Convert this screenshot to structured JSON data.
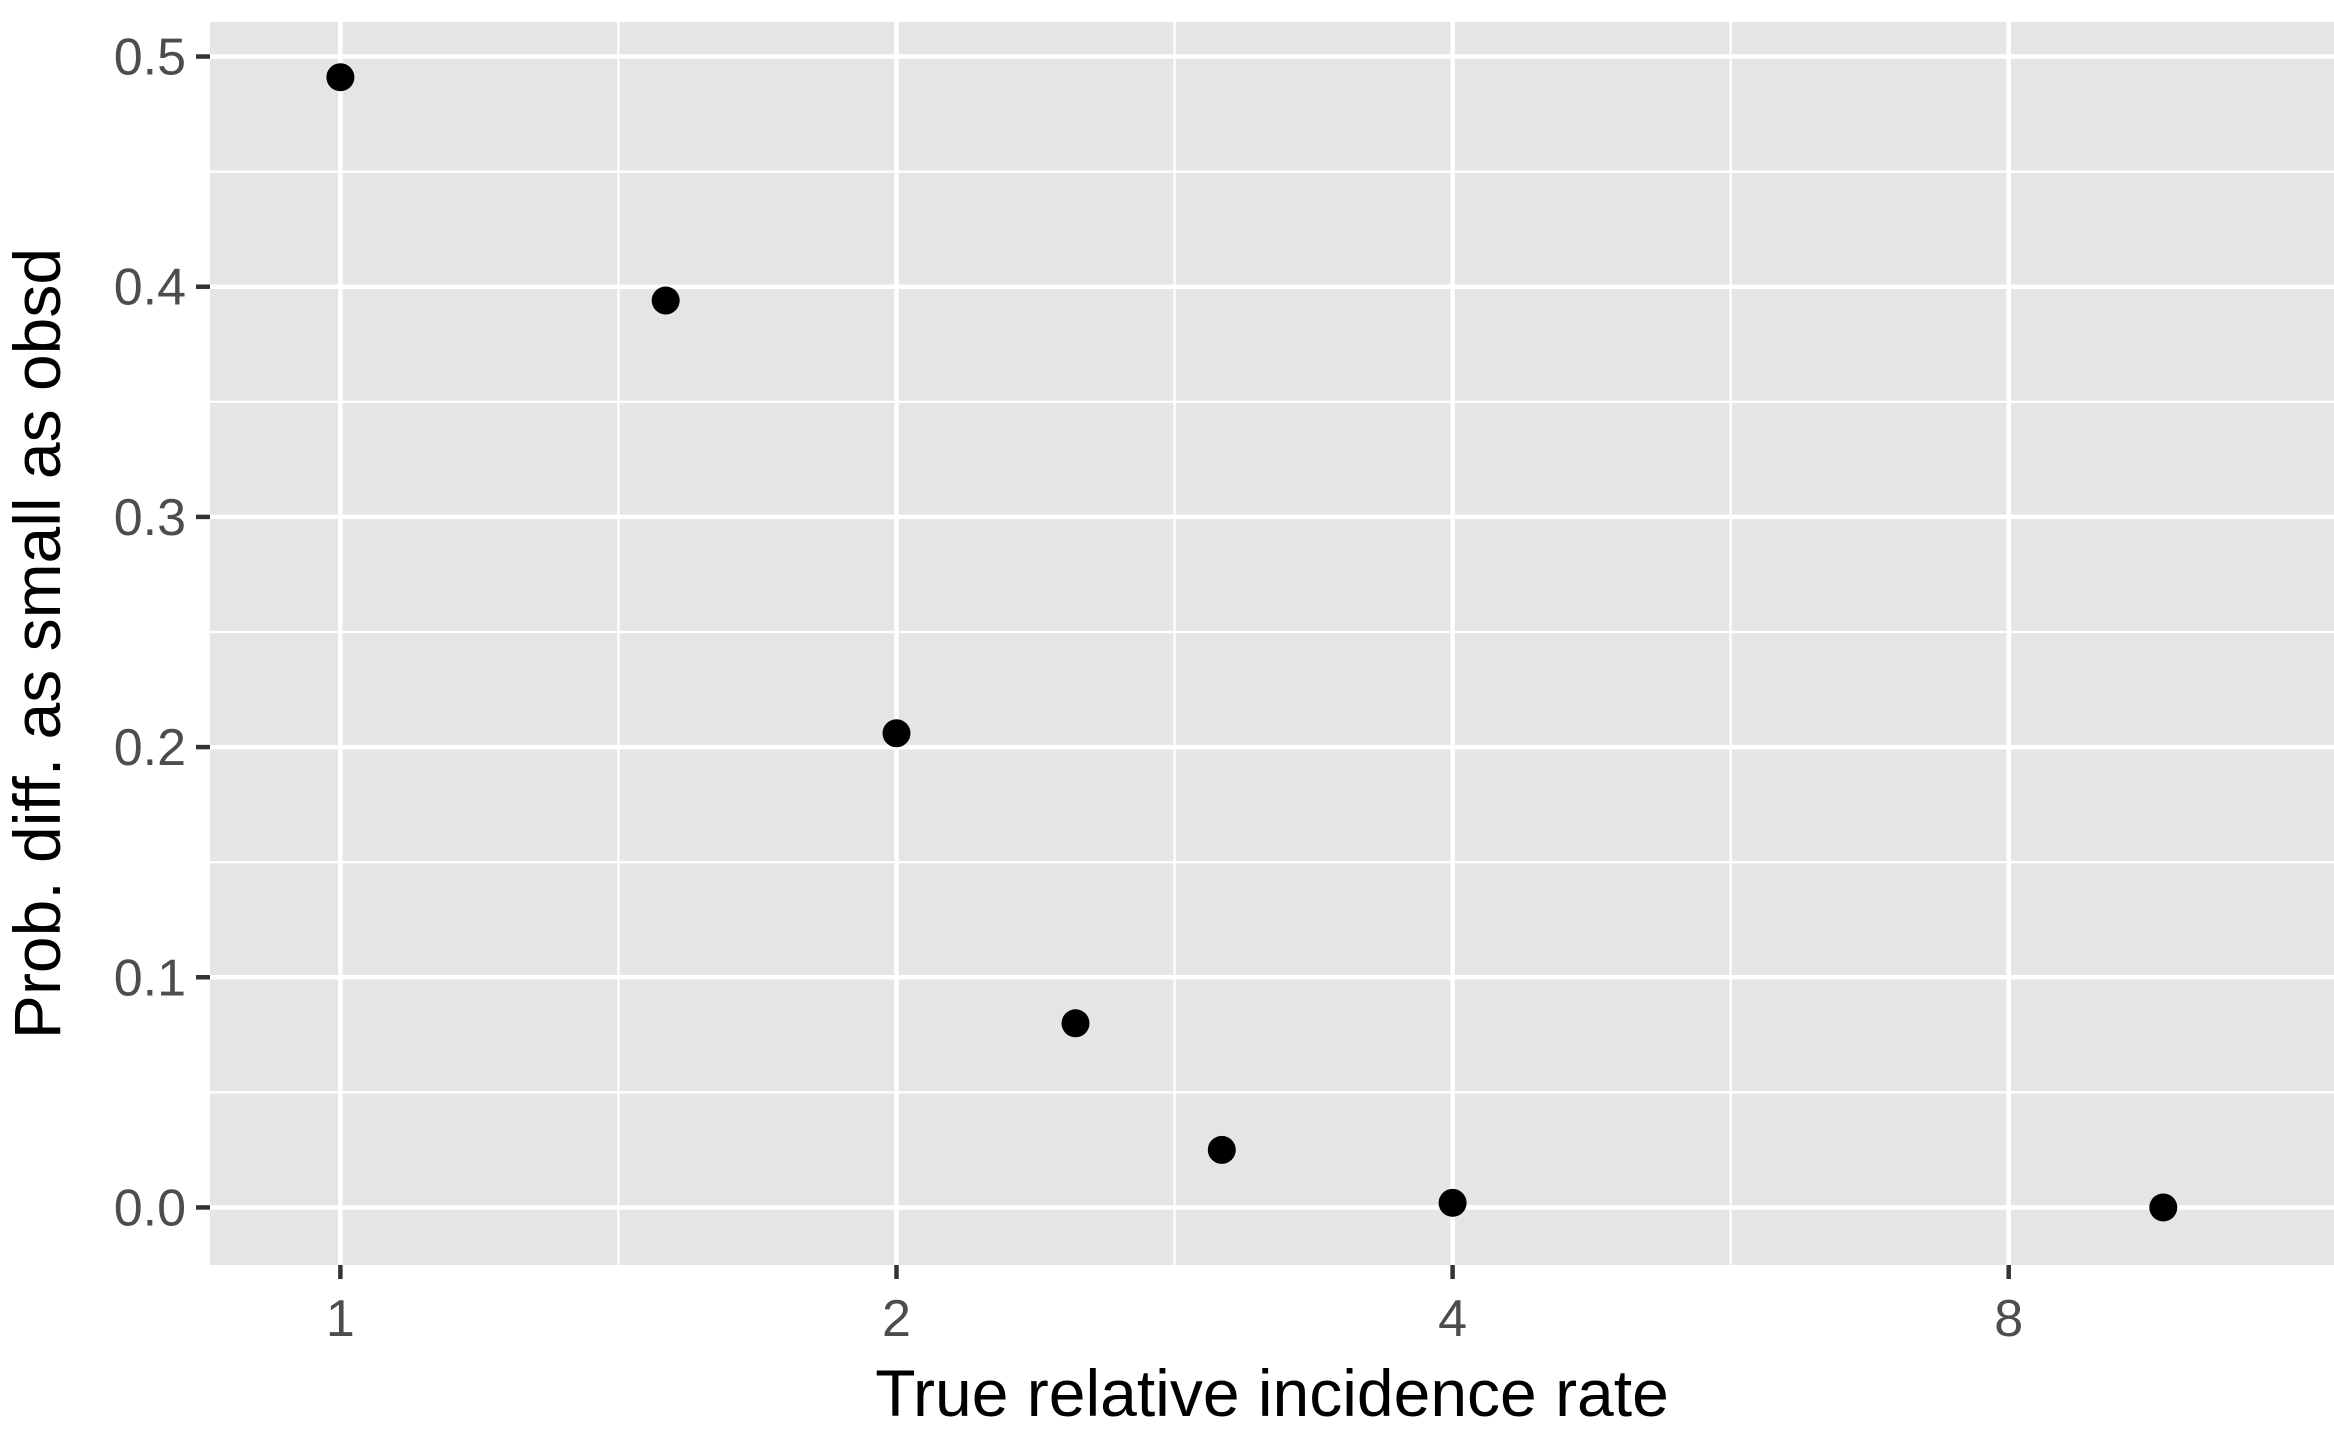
{
  "chart_data": {
    "type": "scatter",
    "title": "",
    "xlabel": "True relative incidence rate",
    "ylabel": "Prob. diff. as small as obsd",
    "x_scale": "log2",
    "xlim": [
      0.85,
      12.0
    ],
    "ylim": [
      -0.025,
      0.515
    ],
    "x_ticks": [
      {
        "value": 1,
        "label": "1"
      },
      {
        "value": 2,
        "label": "2"
      },
      {
        "value": 4,
        "label": "4"
      },
      {
        "value": 8,
        "label": "8"
      }
    ],
    "x_minor_ticks": [
      1.4142,
      2.8284,
      5.6569
    ],
    "y_ticks": [
      {
        "value": 0.0,
        "label": "0.0"
      },
      {
        "value": 0.1,
        "label": "0.1"
      },
      {
        "value": 0.2,
        "label": "0.2"
      },
      {
        "value": 0.3,
        "label": "0.3"
      },
      {
        "value": 0.4,
        "label": "0.4"
      },
      {
        "value": 0.5,
        "label": "0.5"
      }
    ],
    "y_minor_ticks": [
      0.05,
      0.15,
      0.25,
      0.35,
      0.45
    ],
    "grid": true,
    "legend": "none",
    "series": [
      {
        "x": [
          1.0,
          1.5,
          2.0,
          2.5,
          3.0,
          4.0,
          9.7
        ],
        "y": [
          0.491,
          0.394,
          0.206,
          0.08,
          0.025,
          0.002,
          0.0
        ]
      }
    ],
    "colors": {
      "panel": "#e5e5e5",
      "grid": "#ffffff",
      "point": "#000000",
      "tick_label": "#4d4d4d",
      "axis_title": "#000000"
    }
  }
}
